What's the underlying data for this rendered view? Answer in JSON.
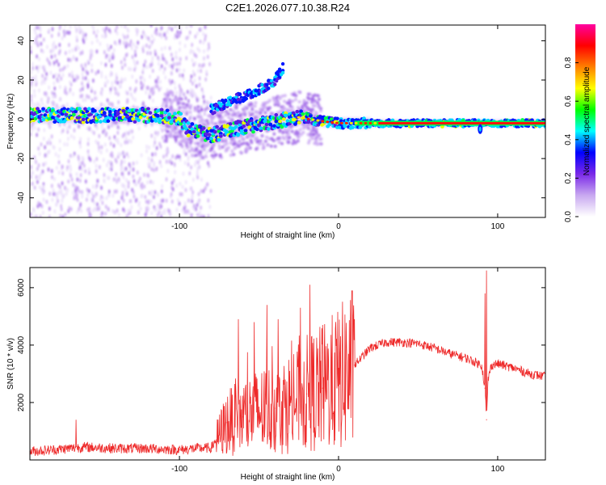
{
  "title": "C2E1.2026.077.10.38.R24",
  "chart_data": [
    {
      "type": "heatmap",
      "xlabel": "Height of straight line (km)",
      "ylabel": "Frequency (Hz)",
      "xlim": [
        -194,
        130
      ],
      "ylim": [
        -50,
        48
      ],
      "xticks": [
        -100,
        0,
        100
      ],
      "yticks": [
        -40,
        -20,
        0,
        20,
        40
      ],
      "colorbar": {
        "label": "Normalized spectral amplitude",
        "range": [
          0,
          1
        ],
        "ticks": [
          0.0,
          0.2,
          0.4,
          0.6,
          0.8
        ],
        "colors": [
          "#ffffff",
          "#c8a8f0",
          "#7a28e8",
          "#0000ff",
          "#00ffff",
          "#00ff00",
          "#ffff00",
          "#ff8000",
          "#ff0000",
          "#ff00a0"
        ]
      },
      "features": {
        "main_track": {
          "x": [
            -194,
            -120,
            -100,
            -95,
            -80,
            -60,
            -40,
            -25,
            -10,
            0,
            30,
            60,
            130
          ],
          "y": [
            2,
            2,
            1,
            -5,
            -8,
            -4,
            -1,
            1,
            -1,
            -2,
            -2,
            -2,
            -2
          ]
        },
        "branch": {
          "x": [
            -80,
            -65,
            -50,
            -40,
            -35
          ],
          "y": [
            5,
            10,
            15,
            20,
            26
          ]
        },
        "dip": {
          "x": 89,
          "y": -5
        }
      }
    },
    {
      "type": "line",
      "xlabel": "Height of straight line (km)",
      "ylabel": "SNR (10 * v/v)",
      "xlim": [
        -194,
        130
      ],
      "ylim": [
        0,
        6700
      ],
      "xticks": [
        -100,
        0,
        100
      ],
      "yticks": [
        2000,
        4000,
        6000
      ],
      "series": [
        {
          "name": "SNR",
          "color": "#ff2020",
          "x": [
            -194,
            -180,
            -160,
            -140,
            -120,
            -100,
            -90,
            -80,
            -77,
            -70,
            -60,
            -50,
            -40,
            -30,
            -20,
            -10,
            0,
            10,
            20,
            30,
            40,
            50,
            60,
            70,
            80,
            90,
            92,
            93,
            94,
            96,
            100,
            110,
            120,
            130
          ],
          "y": [
            300,
            350,
            450,
            400,
            400,
            350,
            400,
            420,
            700,
            1300,
            1500,
            1700,
            1800,
            2000,
            2300,
            2500,
            2800,
            3300,
            3900,
            4100,
            4100,
            4050,
            3900,
            3700,
            3550,
            3300,
            2500,
            1400,
            2800,
            3300,
            3350,
            3200,
            3000,
            2900
          ]
        }
      ],
      "spikes": [
        {
          "x": -165,
          "y": 1400
        },
        {
          "x": -63,
          "y": 4900
        },
        {
          "x": -53,
          "y": 4800
        },
        {
          "x": -45,
          "y": 5400
        },
        {
          "x": -38,
          "y": 4900
        },
        {
          "x": -24,
          "y": 5300
        },
        {
          "x": -18,
          "y": 6100
        },
        {
          "x": -10,
          "y": 4700
        },
        {
          "x": 10,
          "y": 4900
        },
        {
          "x": 92,
          "y": 5800
        },
        {
          "x": 93,
          "y": 6600
        }
      ]
    }
  ]
}
